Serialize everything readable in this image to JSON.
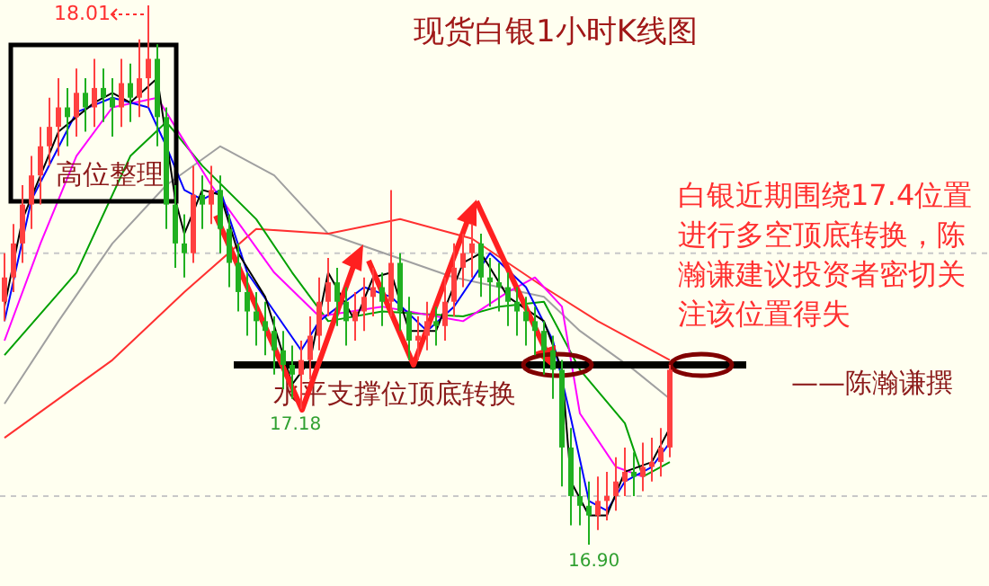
{
  "chart_data": {
    "type": "candlestick",
    "title": "现货白银1小时K线图",
    "categories": [
      null,
      null,
      null,
      null,
      null,
      null,
      null,
      null,
      null,
      null,
      null,
      null,
      null,
      null,
      null,
      null,
      null,
      null,
      null,
      null,
      null,
      null,
      null,
      null,
      null,
      null,
      null,
      null,
      null,
      null,
      null,
      null,
      null,
      null,
      null,
      null,
      null,
      null,
      null,
      null,
      null,
      null,
      null,
      null,
      null,
      null,
      null,
      null,
      null,
      null,
      null,
      null,
      null,
      null,
      null,
      null,
      null,
      null,
      null,
      null,
      null,
      null,
      null,
      null,
      null,
      null,
      null,
      null,
      null,
      null,
      null,
      null,
      null,
      null,
      null
    ],
    "ohlc": [
      [
        17.4,
        17.5,
        17.36,
        17.45
      ],
      [
        17.45,
        17.56,
        17.42,
        17.52
      ],
      [
        17.52,
        17.64,
        17.48,
        17.6
      ],
      [
        17.6,
        17.7,
        17.55,
        17.66
      ],
      [
        17.66,
        17.76,
        17.6,
        17.72
      ],
      [
        17.72,
        17.82,
        17.68,
        17.76
      ],
      [
        17.76,
        17.86,
        17.7,
        17.8
      ],
      [
        17.8,
        17.84,
        17.72,
        17.78
      ],
      [
        17.78,
        17.88,
        17.74,
        17.83
      ],
      [
        17.83,
        17.86,
        17.75,
        17.8
      ],
      [
        17.8,
        17.9,
        17.76,
        17.84
      ],
      [
        17.84,
        17.88,
        17.77,
        17.82
      ],
      [
        17.82,
        17.86,
        17.74,
        17.8
      ],
      [
        17.8,
        17.9,
        17.76,
        17.85
      ],
      [
        17.85,
        17.89,
        17.77,
        17.82
      ],
      [
        17.82,
        17.94,
        17.78,
        17.86
      ],
      [
        17.86,
        18.01,
        17.8,
        17.9
      ],
      [
        17.9,
        17.93,
        17.72,
        17.78
      ],
      [
        17.78,
        17.8,
        17.55,
        17.6
      ],
      [
        17.6,
        17.64,
        17.47,
        17.52
      ],
      [
        17.52,
        17.58,
        17.45,
        17.5
      ],
      [
        17.5,
        17.68,
        17.48,
        17.62
      ],
      [
        17.62,
        17.66,
        17.55,
        17.6
      ],
      [
        17.6,
        17.68,
        17.56,
        17.63
      ],
      [
        17.63,
        17.66,
        17.5,
        17.55
      ],
      [
        17.55,
        17.58,
        17.43,
        17.48
      ],
      [
        17.48,
        17.52,
        17.38,
        17.42
      ],
      [
        17.42,
        17.46,
        17.33,
        17.38
      ],
      [
        17.38,
        17.42,
        17.31,
        17.36
      ],
      [
        17.36,
        17.4,
        17.29,
        17.34
      ],
      [
        17.34,
        17.37,
        17.25,
        17.3
      ],
      [
        17.3,
        17.34,
        17.22,
        17.27
      ],
      [
        17.27,
        17.31,
        17.2,
        17.25
      ],
      [
        17.25,
        17.32,
        17.18,
        17.28
      ],
      [
        17.28,
        17.37,
        17.24,
        17.33
      ],
      [
        17.33,
        17.45,
        17.3,
        17.4
      ],
      [
        17.4,
        17.49,
        17.37,
        17.44
      ],
      [
        17.44,
        17.47,
        17.35,
        17.4
      ],
      [
        17.4,
        17.43,
        17.31,
        17.36
      ],
      [
        17.36,
        17.42,
        17.32,
        17.38
      ],
      [
        17.38,
        17.45,
        17.34,
        17.41
      ],
      [
        17.41,
        17.47,
        17.37,
        17.43
      ],
      [
        17.43,
        17.46,
        17.35,
        17.4
      ],
      [
        17.4,
        17.63,
        17.37,
        17.48
      ],
      [
        17.48,
        17.5,
        17.34,
        17.38
      ],
      [
        17.38,
        17.41,
        17.28,
        17.32
      ],
      [
        17.32,
        17.37,
        17.28,
        17.33
      ],
      [
        17.33,
        17.4,
        17.3,
        17.36
      ],
      [
        17.36,
        17.39,
        17.31,
        17.35
      ],
      [
        17.35,
        17.45,
        17.32,
        17.4
      ],
      [
        17.4,
        17.52,
        17.37,
        17.47
      ],
      [
        17.47,
        17.54,
        17.43,
        17.5
      ],
      [
        17.5,
        17.56,
        17.45,
        17.52
      ],
      [
        17.52,
        17.54,
        17.41,
        17.45
      ],
      [
        17.45,
        17.49,
        17.39,
        17.44
      ],
      [
        17.44,
        17.48,
        17.38,
        17.43
      ],
      [
        17.43,
        17.46,
        17.35,
        17.4
      ],
      [
        17.4,
        17.43,
        17.33,
        17.38
      ],
      [
        17.38,
        17.41,
        17.31,
        17.36
      ],
      [
        17.36,
        17.39,
        17.29,
        17.34
      ],
      [
        17.34,
        17.36,
        17.25,
        17.3
      ],
      [
        17.3,
        17.33,
        17.2,
        17.26
      ],
      [
        17.26,
        17.28,
        17.02,
        17.1
      ],
      [
        17.1,
        17.14,
        16.94,
        17.0
      ],
      [
        17.0,
        17.06,
        16.94,
        16.98
      ],
      [
        16.98,
        17.03,
        16.9,
        16.96
      ],
      [
        16.96,
        17.04,
        16.93,
        16.99
      ],
      [
        16.99,
        17.05,
        16.95,
        17.0
      ],
      [
        17.0,
        17.08,
        16.97,
        17.03
      ],
      [
        17.03,
        17.1,
        17.0,
        17.05
      ],
      [
        17.05,
        17.09,
        17.0,
        17.04
      ],
      [
        17.04,
        17.11,
        17.01,
        17.06
      ],
      [
        17.06,
        17.12,
        17.03,
        17.07
      ],
      [
        17.07,
        17.14,
        17.04,
        17.1
      ],
      [
        17.1,
        17.27,
        17.08,
        17.26
      ]
    ],
    "series": [
      {
        "type": "line",
        "color": "#a0a0a0",
        "values": [
          17.19,
          null,
          null,
          null,
          null,
          null,
          17.36,
          null,
          null,
          null,
          null,
          null,
          17.52,
          null,
          null,
          null,
          null,
          null,
          17.64,
          null,
          null,
          null,
          null,
          null,
          17.72,
          null,
          null,
          null,
          null,
          null,
          17.66,
          null,
          null,
          null,
          null,
          null,
          17.54,
          null,
          null,
          null,
          null,
          null,
          null,
          null,
          null,
          null,
          null,
          null,
          null,
          null,
          17.45,
          null,
          null,
          null,
          null,
          null,
          null,
          null,
          null,
          null,
          17.41,
          null,
          null,
          null,
          17.34,
          null,
          null,
          null,
          null,
          null,
          17.26,
          null,
          null,
          null,
          17.2
        ]
      },
      {
        "type": "line",
        "color": "#ff3030",
        "values": [
          17.12,
          null,
          null,
          null,
          null,
          null,
          null,
          null,
          null,
          null,
          null,
          null,
          17.28,
          null,
          null,
          null,
          null,
          null,
          null,
          null,
          17.42,
          null,
          null,
          null,
          null,
          null,
          null,
          null,
          17.55,
          null,
          null,
          null,
          null,
          null,
          null,
          null,
          17.54,
          null,
          null,
          null,
          null,
          null,
          null,
          null,
          17.57,
          null,
          null,
          null,
          null,
          null,
          null,
          null,
          17.53,
          null,
          null,
          null,
          null,
          null,
          null,
          null,
          17.43,
          null,
          null,
          null,
          null,
          null,
          17.36,
          null,
          null,
          null,
          null,
          null,
          null,
          null,
          17.28
        ]
      },
      {
        "type": "line",
        "color": "#00a000",
        "values": [
          17.29,
          null,
          null,
          null,
          null,
          null,
          null,
          null,
          17.46,
          null,
          null,
          null,
          null,
          null,
          17.7,
          null,
          null,
          null,
          17.77,
          null,
          null,
          null,
          17.68,
          null,
          null,
          null,
          null,
          null,
          17.57,
          null,
          null,
          null,
          17.46,
          null,
          null,
          null,
          17.36,
          null,
          null,
          null,
          null,
          null,
          17.38,
          null,
          null,
          null,
          null,
          null,
          null,
          null,
          null,
          17.37,
          null,
          null,
          null,
          17.39,
          null,
          null,
          null,
          null,
          17.4,
          null,
          null,
          null,
          17.26,
          null,
          null,
          null,
          null,
          17.15,
          null,
          17.04,
          null,
          null,
          17.07
        ]
      },
      {
        "type": "line",
        "color": "#ff00ff",
        "values": [
          17.32,
          null,
          null,
          null,
          17.52,
          null,
          null,
          null,
          17.7,
          null,
          null,
          null,
          17.8,
          null,
          null,
          null,
          null,
          17.82,
          null,
          null,
          17.73,
          null,
          null,
          17.64,
          null,
          null,
          null,
          null,
          null,
          null,
          17.46,
          null,
          null,
          null,
          null,
          17.37,
          null,
          null,
          null,
          null,
          null,
          null,
          17.39,
          null,
          null,
          null,
          null,
          null,
          null,
          null,
          null,
          17.36,
          null,
          null,
          null,
          null,
          17.42,
          null,
          null,
          17.45,
          null,
          null,
          17.39,
          null,
          17.17,
          null,
          null,
          null,
          17.06,
          null,
          null,
          17.04,
          null,
          null,
          null
        ]
      },
      {
        "type": "line",
        "color": "#0000ff",
        "values": [
          17.36,
          null,
          null,
          17.61,
          null,
          null,
          null,
          null,
          17.79,
          null,
          null,
          null,
          17.82,
          null,
          null,
          null,
          17.8,
          null,
          17.72,
          null,
          17.63,
          null,
          17.61,
          null,
          17.63,
          null,
          null,
          17.46,
          null,
          null,
          null,
          null,
          null,
          17.3,
          null,
          17.36,
          null,
          null,
          null,
          null,
          17.43,
          null,
          null,
          17.41,
          null,
          null,
          null,
          17.34,
          null,
          null,
          17.39,
          null,
          null,
          null,
          17.5,
          null,
          null,
          null,
          17.43,
          null,
          null,
          17.32,
          null,
          17.16,
          null,
          16.99,
          null,
          16.97,
          null,
          17.03,
          null,
          null,
          17.06,
          null,
          17.11
        ]
      },
      {
        "type": "line",
        "color": "#000000",
        "values": [
          17.39,
          null,
          17.57,
          null,
          null,
          null,
          17.75,
          null,
          null,
          null,
          17.81,
          null,
          17.83,
          null,
          17.81,
          null,
          null,
          17.86,
          null,
          17.61,
          17.54,
          null,
          17.63,
          null,
          17.62,
          null,
          17.5,
          null,
          null,
          17.41,
          null,
          null,
          17.23,
          null,
          17.28,
          null,
          17.46,
          null,
          null,
          17.36,
          null,
          17.45,
          null,
          17.46,
          null,
          17.34,
          null,
          null,
          17.34,
          null,
          null,
          17.48,
          null,
          17.5,
          null,
          null,
          17.41,
          null,
          null,
          null,
          17.36,
          null,
          17.26,
          17.03,
          null,
          16.96,
          null,
          16.96,
          null,
          17.05,
          null,
          null,
          17.07,
          null,
          17.14
        ]
      }
    ],
    "yticks": [
      {
        "value": 17.0,
        "label": null
      },
      {
        "value": 17.5,
        "label": null
      }
    ],
    "grid": "y",
    "tick_labels": false,
    "ref_lines": [
      {
        "axis": "y",
        "value": 17.27,
        "label": "水平支撑位顶底转换",
        "color": "#000000"
      }
    ],
    "annotations": [
      "18.01",
      {
        "text": "17.18",
        "y": 17.18
      },
      {
        "text": "16.90",
        "y": 16.9
      },
      "高位整理",
      "白银近期围绕17.4位置进行多空顶底转换，陈瀚谦建议投资者密切关注该位置得失",
      "——陈瀚谦撰"
    ]
  }
}
